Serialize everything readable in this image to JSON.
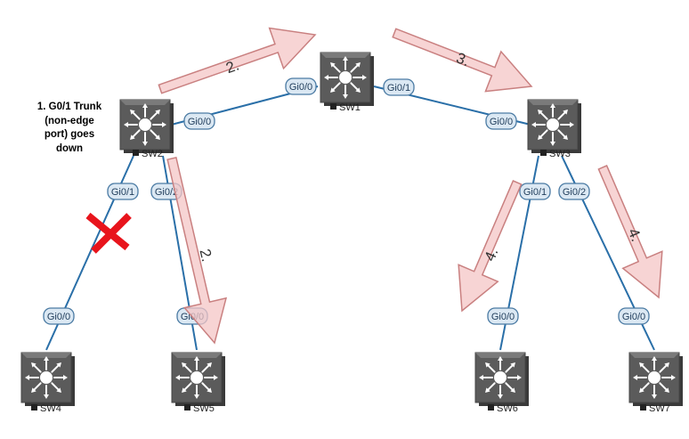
{
  "annotation": {
    "lines": [
      "1. G0/1 Trunk",
      "(non-edge",
      "port) goes",
      "down"
    ]
  },
  "switches": [
    {
      "id": "sw1",
      "name": "SW1"
    },
    {
      "id": "sw2",
      "name": "SW2"
    },
    {
      "id": "sw3",
      "name": "SW3"
    },
    {
      "id": "sw4",
      "name": "SW4"
    },
    {
      "id": "sw5",
      "name": "SW5"
    },
    {
      "id": "sw6",
      "name": "SW6"
    },
    {
      "id": "sw7",
      "name": "SW7"
    }
  ],
  "links": [
    {
      "id": "sw1-sw2",
      "from_port": "Gi0/0",
      "to_port": "Gi0/0",
      "failed": false
    },
    {
      "id": "sw1-sw3",
      "from_port": "Gi0/1",
      "to_port": "Gi0/0",
      "failed": false
    },
    {
      "id": "sw2-sw4",
      "from_port": "Gi0/1",
      "to_port": "Gi0/0",
      "failed": true
    },
    {
      "id": "sw2-sw5",
      "from_port": "Gi0/2",
      "to_port": "Gi0/0",
      "failed": false
    },
    {
      "id": "sw3-sw6",
      "from_port": "Gi0/1",
      "to_port": "Gi0/0",
      "failed": false
    },
    {
      "id": "sw3-sw7",
      "from_port": "Gi0/2",
      "to_port": "Gi0/0",
      "failed": false
    }
  ],
  "steps": [
    {
      "id": "sw2-to-sw1",
      "label": "2."
    },
    {
      "id": "sw2-to-sw5",
      "label": "2."
    },
    {
      "id": "sw1-to-sw3",
      "label": "3."
    },
    {
      "id": "sw3-to-sw6",
      "label": "4."
    },
    {
      "id": "sw3-to-sw7",
      "label": "4."
    }
  ],
  "colors": {
    "link": "#2a6fa8",
    "port_fill": "#dbe8f3",
    "port_stroke": "#4a7aa3",
    "switch_body": "#5b5b5b",
    "arrow_fill": "#f4c6c6",
    "arrow_stroke": "#c98080",
    "failure_mark": "#e8141c"
  }
}
